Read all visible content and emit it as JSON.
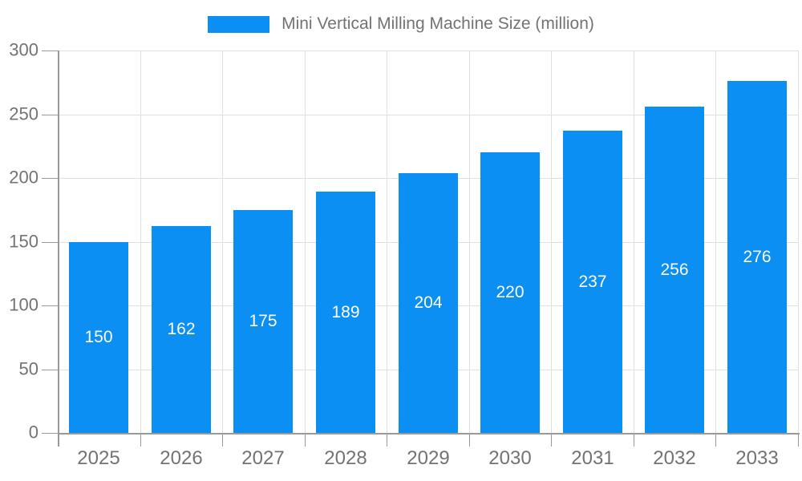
{
  "chart_data": {
    "type": "bar",
    "title": "Mini Vertical Milling Machine Size (million)",
    "legend": [
      "Mini Vertical Milling Machine Size (million)"
    ],
    "legend_position": "top",
    "categories": [
      "2025",
      "2026",
      "2027",
      "2028",
      "2029",
      "2030",
      "2031",
      "2032",
      "2033"
    ],
    "series": [
      {
        "name": "Mini Vertical Milling Machine Size (million)",
        "values": [
          150,
          162,
          175,
          189,
          204,
          220,
          237,
          256,
          276
        ]
      }
    ],
    "xlabel": "",
    "ylabel": "",
    "ylim": [
      0,
      300
    ],
    "y_ticks": [
      0,
      50,
      100,
      150,
      200,
      250,
      300
    ],
    "grid": true,
    "bar_value_labels": "inside-center",
    "colors": {
      "bar": "#0b8ff2",
      "value_label": "#ffffff",
      "tick_label": "#737373",
      "axis_line": "#999999",
      "grid_line": "#e0e0e0",
      "background": "#ffffff"
    }
  }
}
